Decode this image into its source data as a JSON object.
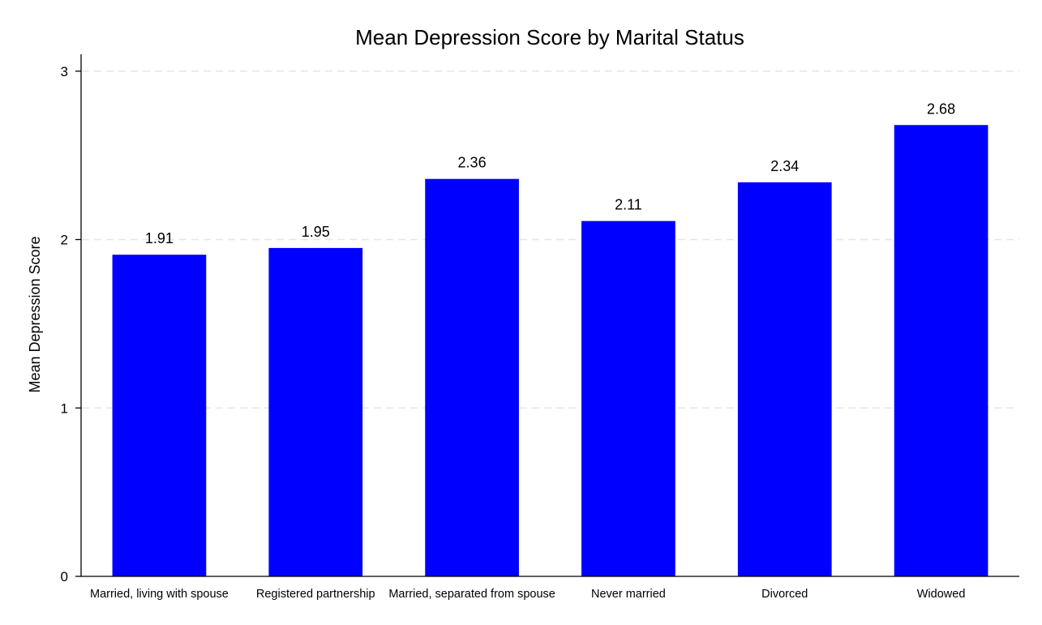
{
  "chart_data": {
    "type": "bar",
    "title": "Mean Depression Score by Marital Status",
    "xlabel": "",
    "ylabel": "Mean Depression Score",
    "categories": [
      "Married, living with spouse",
      "Registered partnership",
      "Married, separated from spouse",
      "Never married",
      "Divorced",
      "Widowed"
    ],
    "values": [
      1.91,
      1.95,
      2.36,
      2.11,
      2.34,
      2.68
    ],
    "value_labels": [
      "1.91",
      "1.95",
      "2.36",
      "2.11",
      "2.34",
      "2.68"
    ],
    "ylim": [
      0,
      3.1
    ],
    "yticks": [
      0,
      1,
      2,
      3
    ],
    "ytick_labels": [
      "0",
      "1",
      "2",
      "3"
    ],
    "grid": "horizontal-dashed",
    "legend": "none",
    "colors": {
      "bar": "#0000ff",
      "grid": "#e6e6e6",
      "axis": "#000000"
    }
  }
}
